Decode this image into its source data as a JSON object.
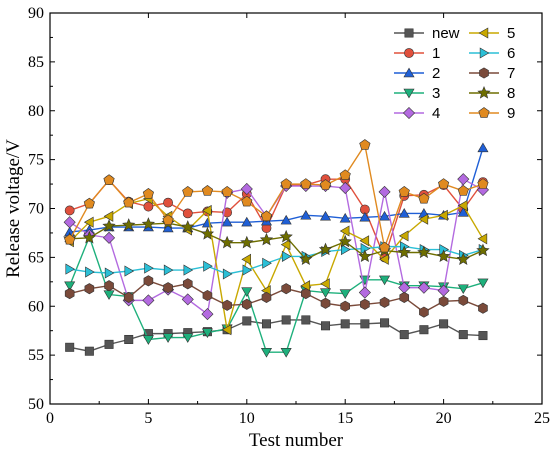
{
  "chart_data": {
    "type": "line",
    "title": "",
    "xlabel": "Test number",
    "ylabel": "Release voltage/V",
    "xlim": [
      0,
      25
    ],
    "ylim": [
      50,
      90
    ],
    "xticks": [
      0,
      5,
      10,
      15,
      20,
      25
    ],
    "yticks": [
      50,
      55,
      60,
      65,
      70,
      75,
      80,
      85,
      90
    ],
    "grid": false,
    "legend_position": "top-right",
    "x": [
      1,
      2,
      3,
      4,
      5,
      6,
      7,
      8,
      9,
      10,
      11,
      12,
      13,
      14,
      15,
      16,
      17,
      18,
      19,
      20,
      21,
      22
    ],
    "series": [
      {
        "name": "new",
        "color": "#555555",
        "marker": "square",
        "values": [
          55.8,
          55.4,
          56.1,
          56.6,
          57.2,
          57.2,
          57.3,
          57.4,
          57.6,
          58.5,
          58.2,
          58.6,
          58.6,
          58.0,
          58.2,
          58.2,
          58.3,
          57.1,
          57.6,
          58.2,
          57.1,
          57.0
        ]
      },
      {
        "name": "1",
        "color": "#e0503c",
        "marker": "circle",
        "values": [
          69.8,
          70.5,
          72.9,
          70.7,
          70.2,
          70.6,
          69.5,
          69.7,
          69.6,
          71.5,
          68.0,
          72.4,
          72.4,
          73.0,
          73.0,
          69.9,
          65.0,
          71.3,
          71.4,
          72.4,
          69.9,
          72.7
        ]
      },
      {
        "name": "2",
        "color": "#1f5fd6",
        "marker": "triangle-up",
        "values": [
          67.6,
          67.8,
          68.1,
          68.1,
          68.1,
          68.0,
          68.0,
          68.5,
          68.6,
          68.6,
          68.7,
          68.8,
          69.3,
          69.2,
          69.0,
          69.1,
          69.2,
          69.5,
          69.5,
          69.3,
          69.6,
          76.2
        ]
      },
      {
        "name": "3",
        "color": "#1eb07c",
        "marker": "triangle-down",
        "values": [
          62.1,
          67.1,
          61.2,
          61.0,
          56.6,
          56.8,
          56.8,
          57.3,
          57.7,
          61.5,
          55.3,
          55.3,
          61.6,
          61.4,
          61.3,
          62.7,
          62.7,
          62.1,
          62.1,
          62.0,
          61.8,
          62.4
        ]
      },
      {
        "name": "4",
        "color": "#b36ae0",
        "marker": "diamond",
        "values": [
          68.6,
          67.3,
          67.0,
          60.6,
          60.6,
          61.7,
          60.7,
          59.2,
          71.6,
          72.0,
          69.2,
          72.3,
          72.3,
          72.3,
          72.1,
          61.4,
          71.7,
          61.9,
          61.9,
          61.6,
          73.0,
          71.9
        ]
      },
      {
        "name": "5",
        "color": "#c8a800",
        "marker": "triangle-left",
        "values": [
          66.6,
          68.6,
          69.2,
          70.5,
          71.0,
          69.2,
          67.8,
          69.8,
          57.6,
          64.8,
          61.6,
          66.3,
          62.1,
          62.3,
          67.7,
          66.7,
          64.8,
          67.2,
          68.9,
          69.3,
          70.3,
          66.9
        ]
      },
      {
        "name": "6",
        "color": "#2bbfd6",
        "marker": "triangle-right",
        "values": [
          63.8,
          63.5,
          63.4,
          63.6,
          63.9,
          63.7,
          63.7,
          64.1,
          63.3,
          63.7,
          64.4,
          65.1,
          65.1,
          65.6,
          65.8,
          65.9,
          66.1,
          66.1,
          65.8,
          65.8,
          65.2,
          65.8
        ]
      },
      {
        "name": "7",
        "color": "#7a4a3a",
        "marker": "hexagon",
        "values": [
          61.3,
          61.8,
          62.1,
          60.9,
          62.6,
          61.9,
          62.3,
          61.1,
          60.1,
          60.2,
          60.9,
          61.8,
          61.3,
          60.3,
          60.0,
          60.2,
          60.4,
          60.9,
          59.4,
          60.5,
          60.6,
          59.8
        ]
      },
      {
        "name": "8",
        "color": "#6e6e00",
        "marker": "star",
        "values": [
          66.9,
          67.0,
          68.2,
          68.3,
          68.4,
          68.5,
          68.1,
          67.4,
          66.5,
          66.5,
          66.8,
          67.1,
          64.8,
          65.8,
          66.6,
          65.1,
          65.7,
          65.5,
          65.5,
          65.1,
          64.8,
          65.7
        ]
      },
      {
        "name": "9",
        "color": "#e08a20",
        "marker": "pentagon",
        "values": [
          66.8,
          70.5,
          72.9,
          70.6,
          71.5,
          68.8,
          71.7,
          71.8,
          71.7,
          70.7,
          69.2,
          72.5,
          72.5,
          72.4,
          73.4,
          76.5,
          66.0,
          71.7,
          71.0,
          72.5,
          71.8,
          72.5
        ]
      }
    ]
  }
}
